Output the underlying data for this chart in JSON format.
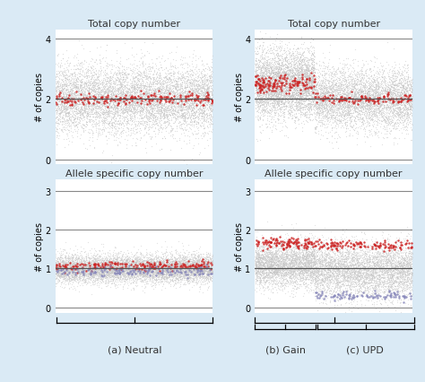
{
  "background_color": "#daeaf5",
  "plot_bg": "#ffffff",
  "title_left_top": "Total copy number",
  "title_right_top": "Total copy number",
  "title_left_bottom": "Allele specific copy number",
  "title_right_bottom": "Allele specific copy number",
  "ylabel": "# of copies",
  "label_a": "(a) Neutral",
  "label_b": "(b) Gain",
  "label_c": "(c) UPD",
  "gray_color": "#c8c8c8",
  "red_color": "#cc2222",
  "blue_color": "#8888bb",
  "line_color": "#555555",
  "hline_color": "#888888",
  "seed": 42,
  "n_gray": 8000,
  "n_red": 200,
  "n_blue": 150,
  "gain_split": 0.38
}
